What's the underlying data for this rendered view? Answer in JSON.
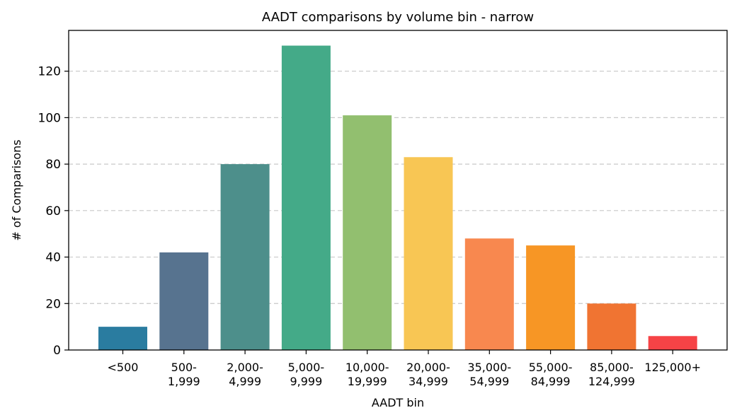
{
  "chart_data": {
    "type": "bar",
    "title": "AADT comparisons by volume bin - narrow",
    "xlabel": "AADT bin",
    "ylabel": "# of Comparisons",
    "categories": [
      [
        "<500"
      ],
      [
        "500-",
        "1,999"
      ],
      [
        "2,000-",
        "4,999"
      ],
      [
        "5,000-",
        "9,999"
      ],
      [
        "10,000-",
        "19,999"
      ],
      [
        "20,000-",
        "34,999"
      ],
      [
        "35,000-",
        "54,999"
      ],
      [
        "55,000-",
        "84,999"
      ],
      [
        "85,000-",
        "124,999"
      ],
      [
        "125,000+"
      ]
    ],
    "values": [
      10,
      42,
      80,
      131,
      101,
      83,
      48,
      45,
      20,
      6
    ],
    "colors": [
      "#2a7ca0",
      "#57738f",
      "#4d8f8b",
      "#44aa88",
      "#92bf6f",
      "#f8c654",
      "#f8884f",
      "#f79625",
      "#f07432",
      "#f64346"
    ],
    "ylim": [
      0,
      137.55
    ],
    "yticks": [
      0,
      20,
      40,
      60,
      80,
      100,
      120
    ],
    "grid": "y-dashed",
    "legend": "none"
  }
}
